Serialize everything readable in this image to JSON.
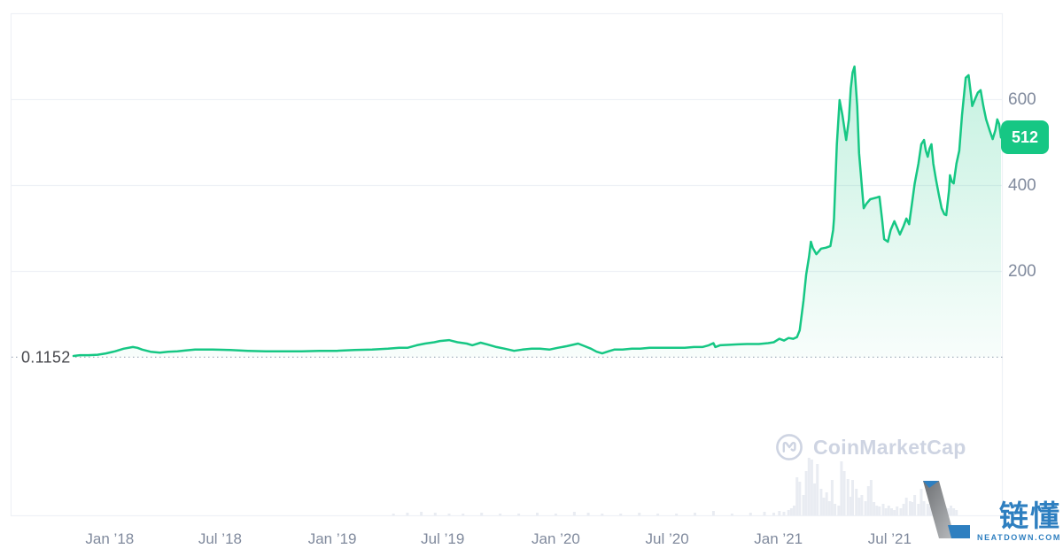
{
  "watermarks": {
    "coinmarketcap": {
      "text": "CoinMarketCap",
      "color": "#ced4e2"
    },
    "neatdown": {
      "title": "链懂",
      "subtitle": "NEATDOWN.COM",
      "color": "#2e7fc0"
    }
  },
  "chart_data": {
    "type": "area",
    "line_color": "#16c784",
    "grid": "horizontal",
    "legend": "none",
    "y_axis": {
      "side": "right",
      "range": [
        0,
        800
      ],
      "ticks": [
        {
          "label": "200",
          "value": 200
        },
        {
          "label": "400",
          "value": 400
        },
        {
          "label": "600",
          "value": 600
        }
      ]
    },
    "x_axis": {
      "ticks": [
        {
          "label": "Jan ’18",
          "t": 0.039
        },
        {
          "label": "Jul ’18",
          "t": 0.158
        },
        {
          "label": "Jan ’19",
          "t": 0.279
        },
        {
          "label": "Jul ’19",
          "t": 0.398
        },
        {
          "label": "Jan ’20",
          "t": 0.52
        },
        {
          "label": "Jul ’20",
          "t": 0.64
        },
        {
          "label": "Jan ’21",
          "t": 0.76
        },
        {
          "label": "Jul ’21",
          "t": 0.88
        }
      ]
    },
    "baseline": {
      "label": "0.1152",
      "value": 0.1152,
      "style": "dotted"
    },
    "current_price": {
      "label": "512",
      "value": 512,
      "badge_color": "#16c784"
    },
    "series": [
      {
        "name": "price",
        "points": [
          [
            0.0,
            3
          ],
          [
            0.007,
            5
          ],
          [
            0.016,
            5
          ],
          [
            0.026,
            6
          ],
          [
            0.035,
            9
          ],
          [
            0.045,
            14
          ],
          [
            0.054,
            20
          ],
          [
            0.064,
            24
          ],
          [
            0.069,
            22
          ],
          [
            0.074,
            18
          ],
          [
            0.083,
            13
          ],
          [
            0.093,
            11
          ],
          [
            0.102,
            13
          ],
          [
            0.112,
            14
          ],
          [
            0.121,
            16
          ],
          [
            0.131,
            18
          ],
          [
            0.14,
            18
          ],
          [
            0.15,
            18
          ],
          [
            0.169,
            17
          ],
          [
            0.188,
            15
          ],
          [
            0.207,
            14
          ],
          [
            0.226,
            14
          ],
          [
            0.246,
            14
          ],
          [
            0.265,
            15
          ],
          [
            0.284,
            15
          ],
          [
            0.303,
            17
          ],
          [
            0.322,
            18
          ],
          [
            0.339,
            20
          ],
          [
            0.351,
            22
          ],
          [
            0.36,
            22
          ],
          [
            0.37,
            28
          ],
          [
            0.379,
            32
          ],
          [
            0.389,
            35
          ],
          [
            0.395,
            38
          ],
          [
            0.405,
            40
          ],
          [
            0.414,
            35
          ],
          [
            0.424,
            32
          ],
          [
            0.43,
            28
          ],
          [
            0.439,
            34
          ],
          [
            0.446,
            30
          ],
          [
            0.456,
            24
          ],
          [
            0.465,
            20
          ],
          [
            0.475,
            15
          ],
          [
            0.484,
            18
          ],
          [
            0.494,
            20
          ],
          [
            0.503,
            20
          ],
          [
            0.513,
            18
          ],
          [
            0.522,
            22
          ],
          [
            0.532,
            26
          ],
          [
            0.544,
            32
          ],
          [
            0.551,
            26
          ],
          [
            0.558,
            20
          ],
          [
            0.564,
            13
          ],
          [
            0.57,
            9
          ],
          [
            0.577,
            14
          ],
          [
            0.583,
            18
          ],
          [
            0.592,
            18
          ],
          [
            0.602,
            20
          ],
          [
            0.611,
            20
          ],
          [
            0.621,
            22
          ],
          [
            0.63,
            22
          ],
          [
            0.64,
            22
          ],
          [
            0.649,
            22
          ],
          [
            0.659,
            22
          ],
          [
            0.669,
            24
          ],
          [
            0.678,
            24
          ],
          [
            0.685,
            28
          ],
          [
            0.69,
            33
          ],
          [
            0.692,
            24
          ],
          [
            0.697,
            28
          ],
          [
            0.707,
            29
          ],
          [
            0.716,
            30
          ],
          [
            0.726,
            31
          ],
          [
            0.739,
            31
          ],
          [
            0.749,
            33
          ],
          [
            0.755,
            35
          ],
          [
            0.761,
            43
          ],
          [
            0.766,
            39
          ],
          [
            0.771,
            45
          ],
          [
            0.776,
            43
          ],
          [
            0.78,
            47
          ],
          [
            0.783,
            63
          ],
          [
            0.787,
            131
          ],
          [
            0.79,
            193
          ],
          [
            0.793,
            234
          ],
          [
            0.795,
            269
          ],
          [
            0.797,
            255
          ],
          [
            0.801,
            240
          ],
          [
            0.806,
            253
          ],
          [
            0.811,
            255
          ],
          [
            0.816,
            259
          ],
          [
            0.819,
            296
          ],
          [
            0.82,
            323
          ],
          [
            0.823,
            496
          ],
          [
            0.826,
            599
          ],
          [
            0.829,
            564
          ],
          [
            0.833,
            506
          ],
          [
            0.836,
            554
          ],
          [
            0.838,
            626
          ],
          [
            0.84,
            663
          ],
          [
            0.842,
            677
          ],
          [
            0.845,
            585
          ],
          [
            0.847,
            475
          ],
          [
            0.85,
            399
          ],
          [
            0.852,
            347
          ],
          [
            0.855,
            358
          ],
          [
            0.859,
            368
          ],
          [
            0.866,
            372
          ],
          [
            0.869,
            374
          ],
          [
            0.872,
            317
          ],
          [
            0.874,
            275
          ],
          [
            0.878,
            269
          ],
          [
            0.881,
            296
          ],
          [
            0.885,
            317
          ],
          [
            0.888,
            302
          ],
          [
            0.891,
            286
          ],
          [
            0.895,
            306
          ],
          [
            0.898,
            323
          ],
          [
            0.901,
            310
          ],
          [
            0.904,
            358
          ],
          [
            0.907,
            405
          ],
          [
            0.911,
            451
          ],
          [
            0.914,
            496
          ],
          [
            0.917,
            506
          ],
          [
            0.919,
            481
          ],
          [
            0.921,
            467
          ],
          [
            0.923,
            486
          ],
          [
            0.925,
            496
          ],
          [
            0.927,
            451
          ],
          [
            0.93,
            413
          ],
          [
            0.933,
            378
          ],
          [
            0.936,
            347
          ],
          [
            0.939,
            333
          ],
          [
            0.941,
            331
          ],
          [
            0.944,
            389
          ],
          [
            0.945,
            424
          ],
          [
            0.947,
            409
          ],
          [
            0.949,
            405
          ],
          [
            0.952,
            451
          ],
          [
            0.955,
            481
          ],
          [
            0.958,
            564
          ],
          [
            0.962,
            651
          ],
          [
            0.965,
            657
          ],
          [
            0.968,
            605
          ],
          [
            0.969,
            585
          ],
          [
            0.972,
            601
          ],
          [
            0.975,
            616
          ],
          [
            0.978,
            622
          ],
          [
            0.981,
            585
          ],
          [
            0.984,
            554
          ],
          [
            0.988,
            527
          ],
          [
            0.991,
            508
          ],
          [
            0.994,
            529
          ],
          [
            0.996,
            554
          ],
          [
            0.998,
            543
          ],
          [
            1.0,
            512
          ]
        ]
      }
    ],
    "volume": {
      "color": "#e9ecf2",
      "bars": [
        [
          0.345,
          2
        ],
        [
          0.36,
          3
        ],
        [
          0.375,
          4
        ],
        [
          0.39,
          3
        ],
        [
          0.405,
          2
        ],
        [
          0.42,
          2
        ],
        [
          0.44,
          3
        ],
        [
          0.46,
          2
        ],
        [
          0.48,
          2
        ],
        [
          0.5,
          3
        ],
        [
          0.52,
          2
        ],
        [
          0.54,
          4
        ],
        [
          0.555,
          3
        ],
        [
          0.57,
          2
        ],
        [
          0.59,
          2
        ],
        [
          0.61,
          3
        ],
        [
          0.63,
          2
        ],
        [
          0.65,
          2
        ],
        [
          0.67,
          3
        ],
        [
          0.69,
          5
        ],
        [
          0.71,
          2
        ],
        [
          0.73,
          3
        ],
        [
          0.745,
          4
        ],
        [
          0.755,
          3
        ],
        [
          0.761,
          5
        ],
        [
          0.766,
          4
        ],
        [
          0.771,
          6
        ],
        [
          0.774,
          8
        ],
        [
          0.777,
          11
        ],
        [
          0.78,
          43
        ],
        [
          0.783,
          38
        ],
        [
          0.787,
          23
        ],
        [
          0.79,
          50
        ],
        [
          0.793,
          65
        ],
        [
          0.796,
          63
        ],
        [
          0.799,
          36
        ],
        [
          0.802,
          58
        ],
        [
          0.806,
          30
        ],
        [
          0.809,
          20
        ],
        [
          0.812,
          26
        ],
        [
          0.815,
          16
        ],
        [
          0.818,
          40
        ],
        [
          0.821,
          13
        ],
        [
          0.825,
          11
        ],
        [
          0.828,
          61
        ],
        [
          0.831,
          50
        ],
        [
          0.835,
          41
        ],
        [
          0.838,
          21
        ],
        [
          0.84,
          40
        ],
        [
          0.844,
          30
        ],
        [
          0.847,
          20
        ],
        [
          0.85,
          23
        ],
        [
          0.854,
          16
        ],
        [
          0.857,
          33
        ],
        [
          0.86,
          40
        ],
        [
          0.863,
          15
        ],
        [
          0.866,
          11
        ],
        [
          0.869,
          10
        ],
        [
          0.873,
          13
        ],
        [
          0.876,
          8
        ],
        [
          0.879,
          11
        ],
        [
          0.882,
          8
        ],
        [
          0.885,
          6
        ],
        [
          0.888,
          10
        ],
        [
          0.892,
          8
        ],
        [
          0.895,
          13
        ],
        [
          0.898,
          20
        ],
        [
          0.902,
          16
        ],
        [
          0.904,
          15
        ],
        [
          0.907,
          23
        ],
        [
          0.911,
          13
        ],
        [
          0.914,
          30
        ],
        [
          0.917,
          16
        ],
        [
          0.921,
          13
        ],
        [
          0.924,
          10
        ],
        [
          0.926,
          11
        ],
        [
          0.93,
          8
        ],
        [
          0.933,
          21
        ],
        [
          0.936,
          11
        ],
        [
          0.94,
          10
        ],
        [
          0.943,
          8
        ],
        [
          0.946,
          11
        ],
        [
          0.949,
          8
        ],
        [
          0.952,
          6
        ]
      ]
    }
  }
}
